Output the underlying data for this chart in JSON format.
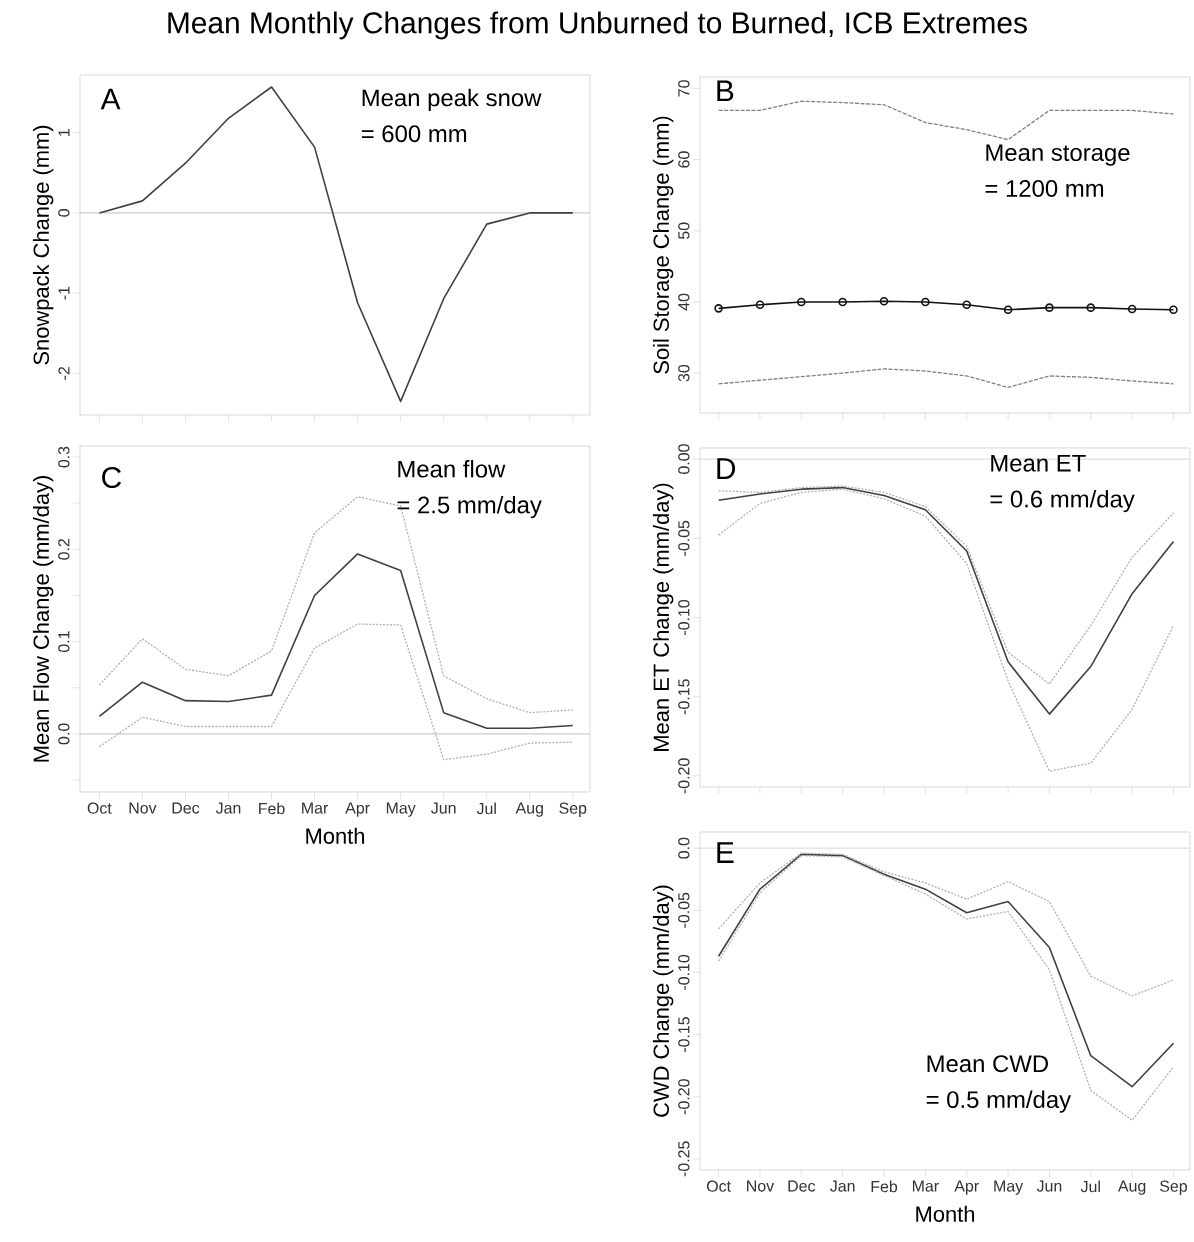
{
  "chart_data": [
    {
      "type": "line",
      "title": "Mean Monthly Changes from Unburned to Burned, ICB Extremes",
      "ylabel": "Snowpack Change (mm)",
      "annotations": [
        "A",
        "Mean peak snow",
        "= 600 mm"
      ],
      "categories": [
        null,
        null,
        null,
        null,
        null,
        null,
        null,
        null,
        null,
        null,
        null,
        null
      ],
      "ylim": [
        -2.52,
        1.72
      ],
      "yticks": [
        -2,
        -1,
        0,
        1
      ],
      "ref_lines": [
        {
          "axis": "y",
          "value": 0,
          "color": "#cccccc"
        }
      ],
      "series": [
        {
          "color": "#404040",
          "values": [
            0,
            0.15,
            0.62,
            1.18,
            1.57,
            0.82,
            -1.12,
            -2.35,
            -1.07,
            -0.14,
            0,
            0
          ]
        }
      ]
    },
    {
      "type": "line",
      "ylabel": "Soil Storage Change (mm)",
      "annotations": [
        "B",
        "Mean storage",
        "= 1200 mm"
      ],
      "categories": [
        null,
        null,
        null,
        null,
        null,
        null,
        null,
        null,
        null,
        null,
        null,
        null
      ],
      "ylim": [
        24.4,
        71.6
      ],
      "yticks": [
        30,
        40,
        50,
        60,
        70
      ],
      "series": [
        {
          "color": "#111111",
          "marker": "circle",
          "values": [
            39.1,
            39.6,
            40.0,
            40.0,
            40.1,
            40.0,
            39.6,
            38.9,
            39.2,
            39.2,
            39.0,
            38.9
          ]
        },
        {
          "color": "#808080",
          "line_style": "dashed",
          "values": [
            66.9,
            66.9,
            68.2,
            68.0,
            67.7,
            65.2,
            64.2,
            62.8,
            66.9,
            66.9,
            66.9,
            66.4
          ]
        },
        {
          "color": "#808080",
          "line_style": "dashed",
          "values": [
            28.5,
            29.0,
            29.5,
            30.0,
            30.6,
            30.3,
            29.6,
            28.0,
            29.6,
            29.4,
            28.9,
            28.5
          ]
        }
      ]
    },
    {
      "type": "line",
      "xlabel": "Month",
      "ylabel": "Mean Flow Change (mm/day)",
      "annotations": [
        "C",
        "Mean flow",
        "= 2.5 mm/day"
      ],
      "categories": [
        "Oct",
        "Nov",
        "Dec",
        "Jan",
        "Feb",
        "Mar",
        "Apr",
        "May",
        "Jun",
        "Jul",
        "Aug",
        "Sep"
      ],
      "ylim": [
        -0.063,
        0.312
      ],
      "yticks": [
        {
          "value": -0.05,
          "label": null
        },
        {
          "value": 0,
          "label": "0.0"
        },
        {
          "value": 0.05,
          "label": null
        },
        0.1,
        {
          "value": 0.15,
          "label": null
        },
        0.2,
        {
          "value": 0.25,
          "label": null
        },
        0.3
      ],
      "ref_lines": [
        {
          "axis": "y",
          "value": 0,
          "color": "#cccccc"
        }
      ],
      "series": [
        {
          "color": "#404040",
          "values": [
            0.019,
            0.056,
            0.036,
            0.035,
            0.042,
            0.15,
            0.195,
            0.177,
            0.023,
            0.006,
            0.006,
            0.009
          ]
        },
        {
          "color": "#b0b0b0",
          "line_style": "dotted",
          "values": [
            0.053,
            0.103,
            0.07,
            0.063,
            0.09,
            0.218,
            0.257,
            0.247,
            0.063,
            0.038,
            0.023,
            0.026
          ]
        },
        {
          "color": "#b0b0b0",
          "line_style": "dotted",
          "values": [
            -0.014,
            0.018,
            0.008,
            0.008,
            0.008,
            0.093,
            0.119,
            0.118,
            -0.028,
            -0.022,
            -0.01,
            -0.009
          ]
        }
      ]
    },
    {
      "type": "line",
      "ylabel": "Mean ET Change (mm/day)",
      "annotations": [
        "D",
        "Mean ET",
        "= 0.6 mm/day"
      ],
      "categories": [
        null,
        null,
        null,
        null,
        null,
        null,
        null,
        null,
        null,
        null,
        null,
        null
      ],
      "ylim": [
        -0.207,
        0.007
      ],
      "yticks": [
        {
          "value": 0,
          "label": "0.00"
        },
        {
          "value": -0.05,
          "label": "-0.05"
        },
        {
          "value": -0.1,
          "label": "-0.10"
        },
        {
          "value": -0.15,
          "label": "-0.15"
        },
        {
          "value": -0.2,
          "label": "-0.20"
        }
      ],
      "ref_lines": [
        {
          "axis": "y",
          "value": 0,
          "color": "#dddddd"
        }
      ],
      "series": [
        {
          "color": "#404040",
          "values": [
            -0.026,
            -0.022,
            -0.019,
            -0.018,
            -0.023,
            -0.032,
            -0.058,
            -0.128,
            -0.161,
            -0.131,
            -0.085,
            -0.052
          ]
        },
        {
          "color": "#b0b0b0",
          "line_style": "dotted",
          "values": [
            -0.02,
            -0.021,
            -0.018,
            -0.017,
            -0.021,
            -0.03,
            -0.055,
            -0.122,
            -0.142,
            -0.105,
            -0.062,
            -0.034
          ]
        },
        {
          "color": "#b0b0b0",
          "line_style": "dotted",
          "values": [
            -0.048,
            -0.028,
            -0.021,
            -0.019,
            -0.025,
            -0.036,
            -0.066,
            -0.14,
            -0.197,
            -0.192,
            -0.158,
            -0.105
          ]
        }
      ]
    },
    {
      "type": "line",
      "xlabel": "Month",
      "ylabel": "CWD Change (mm/day)",
      "annotations": [
        "E",
        "Mean CWD",
        "= 0.5 mm/day"
      ],
      "categories": [
        "Oct",
        "Nov",
        "Dec",
        "Jan",
        "Feb",
        "Mar",
        "Apr",
        "May",
        "Jun",
        "Jul",
        "Aug",
        "Sep"
      ],
      "ylim": [
        -0.259,
        0.013
      ],
      "yticks": [
        {
          "value": 0,
          "label": "0.0"
        },
        {
          "value": -0.05,
          "label": "-0.05"
        },
        {
          "value": -0.1,
          "label": "-0.10"
        },
        {
          "value": -0.15,
          "label": "-0.15"
        },
        {
          "value": -0.2,
          "label": "-0.20"
        },
        {
          "value": -0.25,
          "label": "-0.25"
        }
      ],
      "ref_lines": [
        {
          "axis": "y",
          "value": 0,
          "color": "#dddddd"
        }
      ],
      "series": [
        {
          "color": "#404040",
          "values": [
            -0.087,
            -0.033,
            -0.005,
            -0.006,
            -0.021,
            -0.033,
            -0.052,
            -0.043,
            -0.08,
            -0.167,
            -0.192,
            -0.157
          ]
        },
        {
          "color": "#b0b0b0",
          "line_style": "dotted",
          "values": [
            -0.065,
            -0.028,
            -0.004,
            -0.005,
            -0.019,
            -0.028,
            -0.041,
            -0.027,
            -0.043,
            -0.103,
            -0.119,
            -0.106
          ]
        },
        {
          "color": "#b0b0b0",
          "line_style": "dotted",
          "values": [
            -0.091,
            -0.036,
            -0.006,
            -0.007,
            -0.022,
            -0.037,
            -0.057,
            -0.051,
            -0.098,
            -0.195,
            -0.219,
            -0.176
          ]
        }
      ]
    }
  ]
}
